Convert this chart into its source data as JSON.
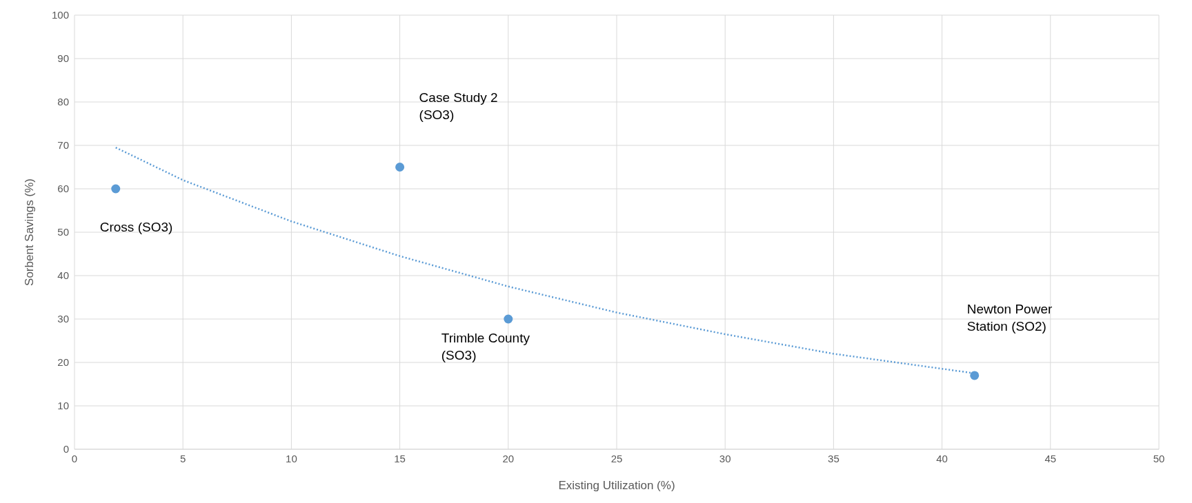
{
  "chart_data": {
    "type": "scatter",
    "xlabel": "Existing Utilization (%)",
    "ylabel": "Sorbent Savings (%)",
    "xlim": [
      0,
      50
    ],
    "xticks": [
      0,
      5,
      10,
      15,
      20,
      25,
      30,
      35,
      40,
      45,
      50
    ],
    "ylim": [
      0,
      100
    ],
    "yticks": [
      0,
      10,
      20,
      30,
      40,
      50,
      60,
      70,
      80,
      90,
      100
    ],
    "grid": true,
    "marker": "circle",
    "series": [
      {
        "color": "#5b9bd5",
        "x": [
          1.9,
          15,
          20,
          41.5
        ],
        "values": [
          60,
          65,
          30,
          17
        ]
      },
      {
        "type": "line",
        "color": "#5b9bd5",
        "line_style": "dotted",
        "marker": "none",
        "x": [
          1.9,
          5,
          10,
          15,
          20,
          25,
          30,
          35,
          41.5
        ],
        "values": [
          69.5,
          62,
          52.5,
          44.5,
          37.5,
          31.5,
          26.5,
          22,
          17.5
        ]
      }
    ],
    "annotations": [
      "Cross (SO3)",
      "Case Study 2 (SO3)",
      "Trimble County (SO3)",
      "Newton Power Station (SO2)"
    ]
  }
}
